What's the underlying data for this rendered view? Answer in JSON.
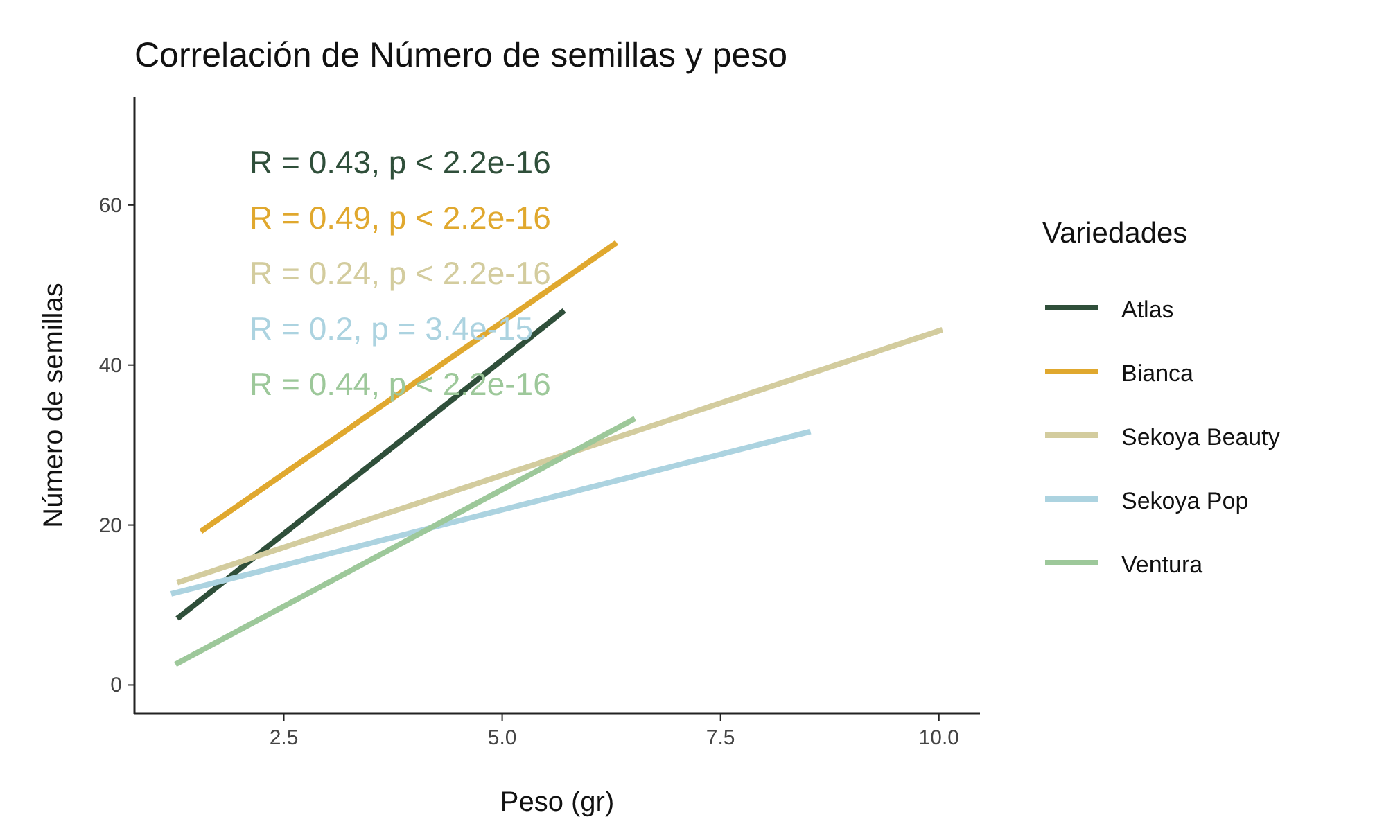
{
  "chart_data": {
    "type": "line",
    "title": "Correlación de Número de semillas y peso",
    "xlabel": "Peso (gr)",
    "ylabel": "Número de semillas",
    "legend_title": "Variedades",
    "legend": "right",
    "grid": false,
    "xlim": [
      0.79,
      10.47
    ],
    "ylim": [
      -3.6,
      73.5
    ],
    "xticks": [
      {
        "value": 2.5,
        "label": "2.5"
      },
      {
        "value": 5,
        "label": "5.0"
      },
      {
        "value": 7.5,
        "label": "7.5"
      },
      {
        "value": 10,
        "label": "10.0"
      }
    ],
    "yticks": [
      0,
      20,
      40,
      60
    ],
    "series": [
      {
        "name": "Atlas",
        "color": "#2f4f3a",
        "x": [
          1.28,
          5.71
        ],
        "values": [
          8.3,
          46.8
        ]
      },
      {
        "name": "Bianca",
        "color": "#e0a82e",
        "x": [
          1.55,
          6.31
        ],
        "values": [
          19.2,
          55.3
        ]
      },
      {
        "name": "Sekoya Beauty",
        "color": "#d3cc9e",
        "x": [
          1.28,
          10.04
        ],
        "values": [
          12.8,
          44.4
        ]
      },
      {
        "name": "Sekoya Pop",
        "color": "#acd3e0",
        "x": [
          1.21,
          8.53
        ],
        "values": [
          11.4,
          31.7
        ]
      },
      {
        "name": "Ventura",
        "color": "#9dc89a",
        "x": [
          1.26,
          6.52
        ],
        "values": [
          2.6,
          33.3
        ]
      }
    ],
    "annotations": [
      "R = 0.43, p < 2.2e-16",
      "R = 0.49, p < 2.2e-16",
      "R = 0.24, p < 2.2e-16",
      "R = 0.2, p = 3.4e-15",
      "R = 0.44, p < 2.2e-16"
    ]
  }
}
